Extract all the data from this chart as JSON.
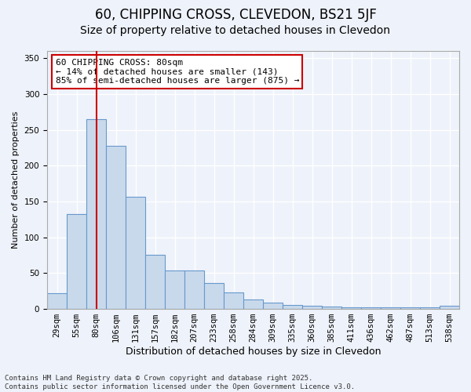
{
  "title": "60, CHIPPING CROSS, CLEVEDON, BS21 5JF",
  "subtitle": "Size of property relative to detached houses in Clevedon",
  "xlabel": "Distribution of detached houses by size in Clevedon",
  "ylabel": "Number of detached properties",
  "categories": [
    "29sqm",
    "55sqm",
    "80sqm",
    "106sqm",
    "131sqm",
    "157sqm",
    "182sqm",
    "207sqm",
    "233sqm",
    "258sqm",
    "284sqm",
    "309sqm",
    "335sqm",
    "360sqm",
    "385sqm",
    "411sqm",
    "436sqm",
    "462sqm",
    "487sqm",
    "513sqm",
    "538sqm"
  ],
  "values": [
    22,
    133,
    265,
    228,
    157,
    76,
    54,
    54,
    36,
    23,
    13,
    9,
    6,
    4,
    3,
    2,
    2,
    2,
    2,
    2,
    5
  ],
  "bar_color": "#c9d9ec",
  "bar_edge_color": "#6699cc",
  "vline_x": 2,
  "vline_color": "#cc0000",
  "annotation_text": "60 CHIPPING CROSS: 80sqm\n← 14% of detached houses are smaller (143)\n85% of semi-detached houses are larger (875) →",
  "annotation_box_color": "#ffffff",
  "annotation_box_edge": "#cc0000",
  "ylim": [
    0,
    360
  ],
  "yticks": [
    0,
    50,
    100,
    150,
    200,
    250,
    300,
    350
  ],
  "background_color": "#eef2fa",
  "grid_color": "#ffffff",
  "footer": "Contains HM Land Registry data © Crown copyright and database right 2025.\nContains public sector information licensed under the Open Government Licence v3.0.",
  "title_fontsize": 12,
  "subtitle_fontsize": 10,
  "xlabel_fontsize": 9,
  "ylabel_fontsize": 8,
  "tick_fontsize": 7.5,
  "annotation_fontsize": 8,
  "footer_fontsize": 6.5
}
